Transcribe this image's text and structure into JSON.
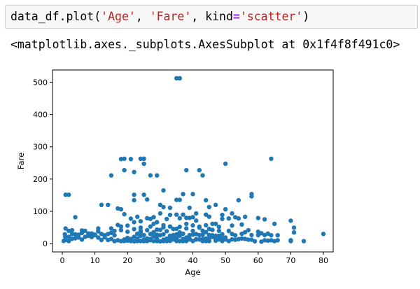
{
  "cell": {
    "code": {
      "fn": "data_df.plot(",
      "arg1": "'Age'",
      "sep1": ", ",
      "arg2": "'Fare'",
      "sep2": ", kind",
      "eq": "=",
      "arg3": "'scatter'",
      "close": ")"
    },
    "output": "<matplotlib.axes._subplots.AxesSubplot at 0x1f4f8f491c0>"
  },
  "colors": {
    "marker": "#1f77b4",
    "cell_bg": "#f7f7f7",
    "string": "#ba2121",
    "operator": "#aa22ff"
  },
  "chart_data": {
    "type": "scatter",
    "title": "",
    "xlabel": "Age",
    "ylabel": "Fare",
    "xlim": [
      -3,
      83
    ],
    "ylim": [
      -25.6,
      537.8
    ],
    "xticks": [
      0,
      10,
      20,
      30,
      40,
      50,
      60,
      70,
      80
    ],
    "yticks": [
      0,
      100,
      200,
      300,
      400,
      500
    ],
    "grid": false,
    "legend": "none",
    "series": [
      {
        "points": [
          [
            35,
            512.3
          ],
          [
            36,
            512.3
          ],
          [
            1,
            151.5
          ],
          [
            2,
            151.5
          ],
          [
            18,
            262
          ],
          [
            19,
            263
          ],
          [
            21,
            262
          ],
          [
            24,
            263
          ],
          [
            25,
            263
          ],
          [
            25,
            247.5
          ],
          [
            19,
            227.5
          ],
          [
            22,
            221.8
          ],
          [
            27,
            211.5
          ],
          [
            29,
            211.3
          ],
          [
            38,
            227.5
          ],
          [
            42,
            227.5
          ],
          [
            43,
            211.5
          ],
          [
            50,
            247.5
          ],
          [
            64,
            263
          ],
          [
            15,
            211.3
          ],
          [
            58,
            153.5
          ],
          [
            58,
            146.5
          ],
          [
            31,
            164.9
          ],
          [
            37,
            153.5
          ],
          [
            40,
            153.5
          ],
          [
            44,
            134.5
          ],
          [
            54,
            134.5
          ],
          [
            47,
            120
          ],
          [
            35,
            135.6
          ],
          [
            36,
            135.6
          ],
          [
            22,
            151.5
          ],
          [
            22,
            134.5
          ],
          [
            25,
            151.5
          ],
          [
            30,
            120
          ],
          [
            12,
            120
          ],
          [
            14,
            120
          ],
          [
            4,
            81.9
          ],
          [
            17,
            108.9
          ],
          [
            18,
            106.4
          ],
          [
            26,
            136.8
          ],
          [
            31,
            113.3
          ],
          [
            33,
            110.9
          ],
          [
            39,
            110.9
          ],
          [
            45,
            113.3
          ],
          [
            49,
            89.1
          ],
          [
            50,
            106.4
          ],
          [
            52,
            93.5
          ],
          [
            54,
            78.3
          ],
          [
            56,
            83.2
          ],
          [
            60,
            79.2
          ],
          [
            62,
            75.2
          ],
          [
            65,
            61.2
          ],
          [
            70,
            71
          ],
          [
            71,
            49.5
          ],
          [
            71,
            34.7
          ],
          [
            80,
            30
          ],
          [
            74,
            7.8
          ],
          [
            70,
            10.5
          ],
          [
            66,
            10.5
          ],
          [
            64,
            26
          ],
          [
            62,
            10.5
          ],
          [
            61,
            32.3
          ],
          [
            58,
            26.6
          ],
          [
            56,
            35.5
          ],
          [
            55,
            16
          ],
          [
            53,
            26
          ],
          [
            51,
            77.9
          ],
          [
            48,
            52
          ],
          [
            46,
            61.2
          ],
          [
            44,
            90
          ],
          [
            42,
            52.6
          ],
          [
            41,
            71.3
          ],
          [
            40,
            82.2
          ],
          [
            39,
            79.7
          ],
          [
            38,
            80
          ],
          [
            37,
            90
          ],
          [
            36,
            78.9
          ],
          [
            35,
            90
          ],
          [
            34,
            26.6
          ],
          [
            33,
            53.1
          ],
          [
            32,
            76.3
          ],
          [
            31,
            57
          ],
          [
            30,
            93.5
          ],
          [
            29,
            66.6
          ],
          [
            28,
            82.2
          ],
          [
            27,
            76.7
          ],
          [
            26,
            78.8
          ],
          [
            24,
            69.3
          ],
          [
            23,
            83.2
          ],
          [
            22,
            66.6
          ],
          [
            21,
            77.3
          ],
          [
            20,
            55.9
          ],
          [
            19,
            91.1
          ],
          [
            18,
            53.1
          ],
          [
            17,
            57.9
          ],
          [
            16,
            39.7
          ],
          [
            15,
            46.9
          ],
          [
            14,
            30.1
          ],
          [
            13,
            26
          ],
          [
            12,
            11.2
          ],
          [
            11,
            46.9
          ],
          [
            10,
            27.9
          ],
          [
            9,
            31.4
          ],
          [
            8,
            29.1
          ],
          [
            7,
            39.7
          ],
          [
            6,
            33
          ],
          [
            5,
            27.8
          ],
          [
            4,
            29.1
          ],
          [
            3,
            41.6
          ],
          [
            2,
            39.7
          ],
          [
            1,
            46.9
          ],
          [
            0.8,
            29
          ],
          [
            0.4,
            8.5
          ],
          [
            0.9,
            20.6
          ],
          [
            1,
            11.1
          ],
          [
            2,
            21.1
          ],
          [
            3,
            15.2
          ],
          [
            4,
            16.7
          ],
          [
            5,
            19.3
          ],
          [
            6,
            12.5
          ],
          [
            7,
            21
          ],
          [
            8,
            31.3
          ],
          [
            9,
            20.5
          ],
          [
            10,
            26.3
          ],
          [
            11,
            18.8
          ],
          [
            13,
            19.5
          ],
          [
            14,
            11.2
          ],
          [
            15,
            14.5
          ],
          [
            16,
            7.7
          ],
          [
            17,
            10.5
          ],
          [
            18,
            7.8
          ],
          [
            19,
            8.1
          ],
          [
            20,
            9.5
          ],
          [
            21,
            7.9
          ],
          [
            22,
            7.25
          ],
          [
            23,
            7.9
          ],
          [
            24,
            8.05
          ],
          [
            25,
            7.8
          ],
          [
            26,
            7.9
          ],
          [
            27,
            10.5
          ],
          [
            28,
            7.9
          ],
          [
            29,
            8.05
          ],
          [
            30,
            7.2
          ],
          [
            31,
            7.9
          ],
          [
            32,
            7.9
          ],
          [
            33,
            8.7
          ],
          [
            34,
            13
          ],
          [
            35,
            8.05
          ],
          [
            36,
            7.9
          ],
          [
            37,
            7.75
          ],
          [
            38,
            7.9
          ],
          [
            39,
            13
          ],
          [
            40,
            7.9
          ],
          [
            41,
            14.1
          ],
          [
            42,
            13
          ],
          [
            43,
            8.05
          ],
          [
            44,
            7.9
          ],
          [
            45,
            8.05
          ],
          [
            46,
            26
          ],
          [
            47,
            9
          ],
          [
            48,
            13
          ],
          [
            49,
            7.9
          ],
          [
            50,
            13
          ],
          [
            51,
            8.05
          ],
          [
            52,
            13.5
          ],
          [
            54,
            14
          ],
          [
            55,
            30.5
          ],
          [
            57,
            12.4
          ],
          [
            59,
            7.25
          ],
          [
            60,
            26.5
          ],
          [
            61,
            6.2
          ],
          [
            62,
            26.6
          ],
          [
            63,
            9.6
          ],
          [
            65,
            7.75
          ],
          [
            66,
            26
          ],
          [
            70,
            7.8
          ],
          [
            20,
            18
          ],
          [
            22,
            21
          ],
          [
            24,
            24
          ],
          [
            26,
            16.1
          ],
          [
            28,
            22.5
          ],
          [
            30,
            26
          ],
          [
            32,
            15.8
          ],
          [
            34,
            21
          ],
          [
            36,
            24.2
          ],
          [
            38,
            18.8
          ],
          [
            40,
            27.7
          ],
          [
            42,
            26.3
          ],
          [
            44,
            16.1
          ],
          [
            46,
            21
          ],
          [
            48,
            24.2
          ],
          [
            50,
            18.8
          ],
          [
            52,
            30
          ],
          [
            23,
            30.5
          ],
          [
            25,
            26.6
          ],
          [
            27,
            30
          ],
          [
            29,
            27.7
          ],
          [
            31,
            28.7
          ],
          [
            33,
            24.2
          ],
          [
            35,
            28.5
          ],
          [
            37,
            30.7
          ],
          [
            39,
            26.6
          ],
          [
            41,
            29.7
          ],
          [
            43,
            27.7
          ],
          [
            45,
            26.5
          ],
          [
            47,
            24.2
          ],
          [
            49,
            29
          ],
          [
            20,
            36.7
          ],
          [
            24,
            36
          ],
          [
            28,
            35.5
          ],
          [
            32,
            38.5
          ],
          [
            36,
            34.7
          ],
          [
            40,
            39.6
          ],
          [
            44,
            35.5
          ],
          [
            48,
            39.6
          ],
          [
            26,
            41.6
          ],
          [
            30,
            42.4
          ],
          [
            34,
            45.5
          ],
          [
            38,
            47.1
          ],
          [
            42,
            49.5
          ],
          [
            46,
            42.4
          ],
          [
            22,
            45
          ],
          [
            18,
            42
          ],
          [
            16,
            26
          ],
          [
            12,
            30
          ],
          [
            8,
            24
          ],
          [
            6,
            41
          ],
          [
            3,
            30
          ],
          [
            2,
            8
          ],
          [
            19,
            13
          ],
          [
            21,
            14.5
          ],
          [
            23,
            16.1
          ],
          [
            25,
            13
          ],
          [
            27,
            14.5
          ],
          [
            29,
            16.1
          ],
          [
            31,
            12.3
          ],
          [
            33,
            15.5
          ],
          [
            35,
            16.1
          ],
          [
            37,
            14.5
          ],
          [
            39,
            15.2
          ],
          [
            41,
            12.5
          ],
          [
            43,
            14.5
          ],
          [
            45,
            15.5
          ],
          [
            47,
            14.5
          ],
          [
            49,
            16
          ],
          [
            53,
            12
          ],
          [
            56,
            15
          ],
          [
            58,
            12
          ],
          [
            36,
            52
          ],
          [
            40,
            56.5
          ],
          [
            44,
            57
          ],
          [
            52,
            56
          ],
          [
            45,
            83.5
          ],
          [
            49,
            76.7
          ],
          [
            31,
            50.5
          ],
          [
            27,
            53.1
          ],
          [
            24,
            49.5
          ],
          [
            38,
            61.4
          ],
          [
            28,
            61.2
          ],
          [
            33,
            89.1
          ],
          [
            41,
            93.5
          ],
          [
            53,
            81.9
          ],
          [
            47,
            61.2
          ],
          [
            55,
            59.4
          ],
          [
            24,
            40.1
          ],
          [
            29,
            43.5
          ],
          [
            35,
            46
          ],
          [
            43,
            40
          ],
          [
            51,
            39.4
          ],
          [
            57,
            41.5
          ],
          [
            63,
            31.2
          ],
          [
            15,
            33.5
          ],
          [
            11,
            38
          ],
          [
            45,
            45.5
          ],
          [
            60,
            37
          ],
          [
            64,
            10.5
          ]
        ]
      }
    ]
  }
}
